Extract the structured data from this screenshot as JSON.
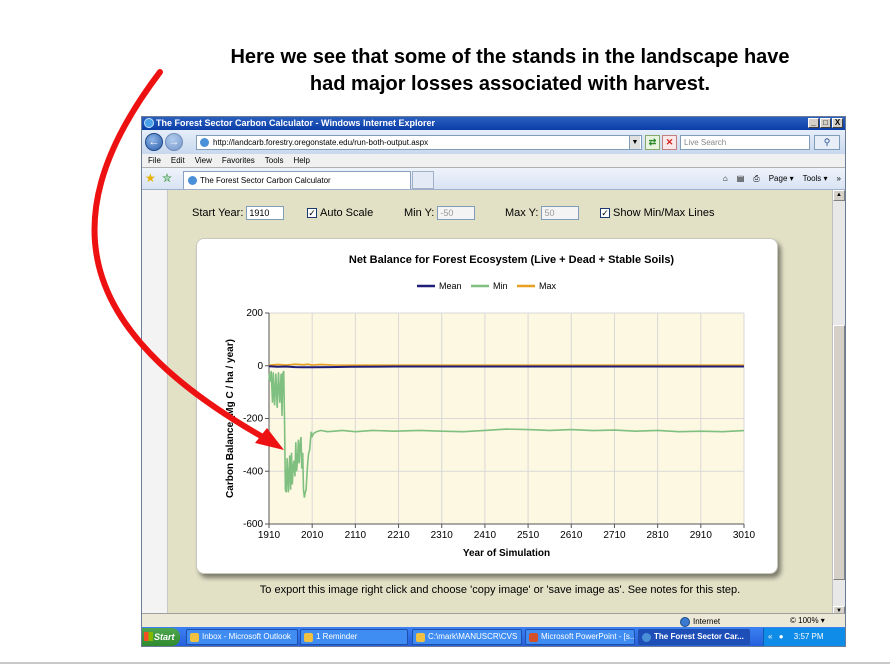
{
  "slide": {
    "title_line1": "Here we see that some of the stands in the landscape have",
    "title_line2": "had major losses associated with harvest."
  },
  "window": {
    "title": "The Forest Sector Carbon Calculator - Windows Internet Explorer",
    "buttons": {
      "minimize": "_",
      "maximize": "□",
      "close": "X"
    }
  },
  "address_bar": {
    "url": "http://landcarb.forestry.oregonstate.edu/run-both-output.aspx",
    "search_placeholder": "Live Search"
  },
  "menu": [
    "File",
    "Edit",
    "View",
    "Favorites",
    "Tools",
    "Help"
  ],
  "tab": {
    "label": "The Forest Sector Carbon Calculator"
  },
  "command_bar": {
    "page": "Page ▾",
    "tools": "Tools ▾"
  },
  "controls": {
    "start_year_label": "Start Year:",
    "start_year_value": "1910",
    "auto_scale_label": "Auto Scale",
    "auto_scale_checked": true,
    "min_y_label": "Min Y:",
    "min_y_value": "-50",
    "max_y_label": "Max Y:",
    "max_y_value": "50",
    "show_minmax_label": "Show Min/Max Lines",
    "show_minmax_checked": true
  },
  "chart_data": {
    "type": "line",
    "title": "Net Balance for Forest Ecosystem (Live + Dead + Stable Soils)",
    "xlabel": "Year of Simulation",
    "ylabel": "Carbon Balance (Mg C / ha / year)",
    "xlim": [
      1910,
      3010
    ],
    "ylim": [
      -600,
      200
    ],
    "x_ticks": [
      1910,
      2010,
      2110,
      2210,
      2310,
      2410,
      2510,
      2610,
      2710,
      2810,
      2910,
      3010
    ],
    "y_ticks": [
      200,
      0,
      -200,
      -400,
      -600
    ],
    "grid": true,
    "legend_placement": "top-center",
    "series": [
      {
        "name": "Mean",
        "color": "#1f1f7a",
        "x": [
          1910,
          1930,
          1950,
          1970,
          1990,
          2010,
          2050,
          2100,
          2200,
          2400,
          2600,
          2800,
          3010
        ],
        "y": [
          -2,
          -4,
          -3,
          -5,
          -6,
          -6,
          -5,
          -4,
          -3,
          -3,
          -3,
          -3,
          -3
        ]
      },
      {
        "name": "Min",
        "color": "#7fbf7f",
        "x": [
          1910,
          1912,
          1915,
          1918,
          1920,
          1923,
          1926,
          1929,
          1932,
          1935,
          1938,
          1940,
          1942,
          1944,
          1946,
          1948,
          1950,
          1952,
          1955,
          1958,
          1960,
          1962,
          1964,
          1966,
          1968,
          1970,
          1972,
          1974,
          1976,
          1978,
          1980,
          1982,
          1984,
          1986,
          1988,
          1990,
          1992,
          1994,
          1996,
          1998,
          2000,
          2002,
          2004,
          2006,
          2008,
          2010,
          2012,
          2015,
          2020,
          2030,
          2045,
          2060,
          2080,
          2110,
          2150,
          2200,
          2260,
          2310,
          2360,
          2410,
          2460,
          2510,
          2560,
          2610,
          2660,
          2710,
          2760,
          2810,
          2860,
          2910,
          2960,
          3010
        ],
        "y": [
          -30,
          -60,
          -20,
          -140,
          -25,
          -150,
          -30,
          -160,
          -25,
          -140,
          -30,
          -190,
          -30,
          -20,
          -200,
          -470,
          -480,
          -350,
          -480,
          -340,
          -470,
          -330,
          -450,
          -380,
          -360,
          -420,
          -290,
          -400,
          -360,
          -280,
          -370,
          -300,
          -270,
          -390,
          -330,
          -470,
          -500,
          -480,
          -470,
          -410,
          -360,
          -330,
          -320,
          -280,
          -250,
          -270,
          -260,
          -255,
          -250,
          -245,
          -250,
          -248,
          -245,
          -250,
          -245,
          -248,
          -245,
          -248,
          -250,
          -245,
          -240,
          -242,
          -245,
          -242,
          -246,
          -244,
          -248,
          -245,
          -250,
          -248,
          -250,
          -246
        ]
      },
      {
        "name": "Max",
        "color": "#e8a020",
        "x": [
          1910,
          1930,
          1950,
          1970,
          1990,
          2000,
          2010,
          2030,
          2060,
          2110,
          2300,
          2600,
          3010
        ],
        "y": [
          2,
          5,
          3,
          6,
          4,
          6,
          3,
          5,
          3,
          2,
          2,
          2,
          2
        ]
      }
    ]
  },
  "export_note": "To export this image right click and choose 'copy image' or 'save image as'. See notes for this step.",
  "status": {
    "zone": "Internet",
    "zoom": "© 100% ▾"
  },
  "taskbar": {
    "start": "Start",
    "tasks": [
      "Inbox - Microsoft Outlook",
      "1 Reminder",
      "C:\\mark\\MANUSCR\\CVS",
      "Microsoft PowerPoint - [s...",
      "The Forest Sector Car..."
    ],
    "clock": "3:57 PM"
  }
}
